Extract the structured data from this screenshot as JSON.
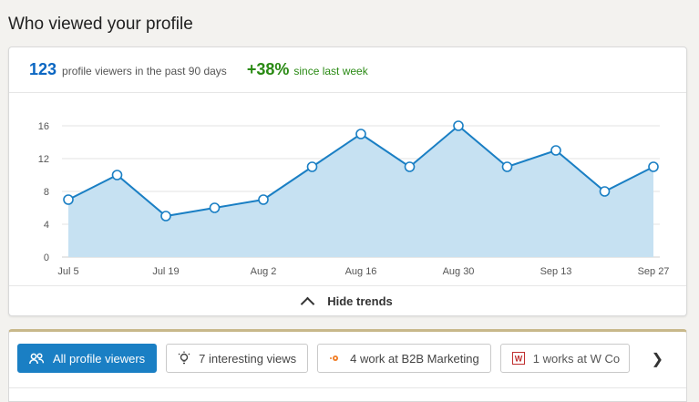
{
  "page": {
    "title": "Who viewed your profile"
  },
  "summary": {
    "count": "123",
    "count_label": "profile viewers in the past 90 days",
    "change": "+38%",
    "change_label": "since last week"
  },
  "chart_data": {
    "type": "area",
    "x": [
      "Jul 5",
      "Jul 12",
      "Jul 19",
      "Jul 26",
      "Aug 2",
      "Aug 9",
      "Aug 16",
      "Aug 23",
      "Aug 30",
      "Sep 6",
      "Sep 13",
      "Sep 20",
      "Sep 27"
    ],
    "tick_labels": [
      "Jul 5",
      "Jul 19",
      "Aug 2",
      "Aug 16",
      "Aug 30",
      "Sep 13",
      "Sep 27"
    ],
    "values": [
      7,
      10,
      5,
      6,
      7,
      11,
      15,
      11,
      16,
      11,
      13,
      8,
      11
    ],
    "ylim": [
      0,
      16
    ],
    "yticks": [
      0,
      4,
      8,
      12,
      16
    ],
    "grid": true,
    "line_color": "#1a7fc4",
    "fill_color": "#c6e1f2"
  },
  "trends": {
    "label": "Hide trends"
  },
  "filters": {
    "items": [
      {
        "label": "All profile viewers",
        "icon": "people-icon",
        "active": true
      },
      {
        "label": "7 interesting views",
        "icon": "lightbulb-icon",
        "active": false
      },
      {
        "label": "4 work at B2B Marketing",
        "icon": "company-logo-icon",
        "active": false
      },
      {
        "label": "1 works at W Co",
        "icon": "company-logo-icon",
        "active": false
      }
    ],
    "next_icon": "chevron-right-icon"
  }
}
